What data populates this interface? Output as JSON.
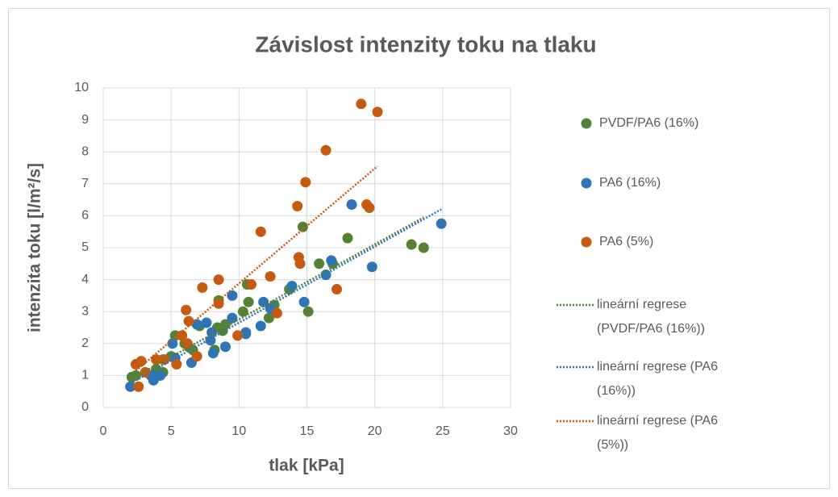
{
  "chart_data": {
    "type": "scatter",
    "title": "Závislost intenzity toku na tlaku",
    "xlabel": "tlak [kPa]",
    "ylabel": "intenzita toku [l/m²/s]",
    "xlim": [
      0,
      30
    ],
    "xticks": [
      0,
      5,
      10,
      15,
      20,
      25,
      30
    ],
    "ylim": [
      0,
      10
    ],
    "yticks": [
      0,
      1,
      2,
      3,
      4,
      5,
      6,
      7,
      8,
      9,
      10
    ],
    "grid": true,
    "legend": "right",
    "series": [
      {
        "name": "PVDF/PA6 (16%)",
        "color": "#548235",
        "x": [
          2.1,
          2.4,
          3.9,
          4.4,
          5.0,
          5.3,
          6.3,
          6.6,
          7.1,
          8.5,
          8.4,
          8.8,
          8.2,
          10.3,
          10.6,
          10.7,
          12.2,
          13.7,
          14.7,
          15.1,
          15.9,
          16.9,
          18.0,
          22.7,
          23.6,
          9.0,
          12.6,
          6.0
        ],
        "values": [
          0.95,
          1.0,
          1.2,
          1.1,
          1.6,
          2.25,
          1.9,
          1.8,
          2.55,
          3.35,
          2.5,
          2.4,
          1.8,
          3.0,
          3.85,
          3.3,
          2.8,
          3.7,
          5.65,
          3.0,
          4.5,
          4.5,
          5.3,
          5.1,
          5.0,
          2.6,
          3.2,
          2.0
        ]
      },
      {
        "name": "PA6 (16%)",
        "color": "#2e75b6",
        "x": [
          2.0,
          3.5,
          3.7,
          4.2,
          4.4,
          5.1,
          5.3,
          6.5,
          6.9,
          7.6,
          7.9,
          8.1,
          8.0,
          9.0,
          9.5,
          9.5,
          10.5,
          11.8,
          11.6,
          12.3,
          13.9,
          14.8,
          16.4,
          16.8,
          18.3,
          19.8,
          24.9,
          10.5
        ],
        "values": [
          0.65,
          1.0,
          0.85,
          1.0,
          1.5,
          2.0,
          1.55,
          1.4,
          2.6,
          2.65,
          2.1,
          1.7,
          2.35,
          1.9,
          2.8,
          3.5,
          2.3,
          3.3,
          2.55,
          3.1,
          3.8,
          3.3,
          4.15,
          4.6,
          6.35,
          4.4,
          5.75,
          2.35
        ]
      },
      {
        "name": "PA6 (5%)",
        "color": "#c55a11",
        "x": [
          2.4,
          2.6,
          2.8,
          3.1,
          3.9,
          4.5,
          5.4,
          5.8,
          6.1,
          6.2,
          6.3,
          6.9,
          7.3,
          8.5,
          8.5,
          9.9,
          10.9,
          11.6,
          12.3,
          12.8,
          14.3,
          14.4,
          14.5,
          14.9,
          16.4,
          17.2,
          19.0,
          19.4,
          19.6,
          20.2
        ],
        "values": [
          1.35,
          0.65,
          1.45,
          1.1,
          1.5,
          1.5,
          1.35,
          2.25,
          3.05,
          2.0,
          2.7,
          1.6,
          3.75,
          4.0,
          3.25,
          2.25,
          3.85,
          5.5,
          4.1,
          2.95,
          6.3,
          4.7,
          4.5,
          7.05,
          8.05,
          3.7,
          9.5,
          6.35,
          6.25,
          9.25
        ]
      },
      {
        "name": "lineární regrese (PVDF/PA6 (16%))",
        "color": "#548235",
        "line_style": "dotted",
        "x": [
          2.1,
          23.6
        ],
        "values": [
          0.9,
          5.95
        ]
      },
      {
        "name": "lineární regrese (PA6 (16%))",
        "color": "#2e75b6",
        "line_style": "dotted",
        "x": [
          2.0,
          24.9
        ],
        "values": [
          0.75,
          6.2
        ]
      },
      {
        "name": "lineární regrese (PA6 (5%))",
        "color": "#c55a11",
        "line_style": "dotted",
        "x": [
          2.4,
          20.2
        ],
        "values": [
          1.15,
          7.55
        ]
      }
    ]
  }
}
